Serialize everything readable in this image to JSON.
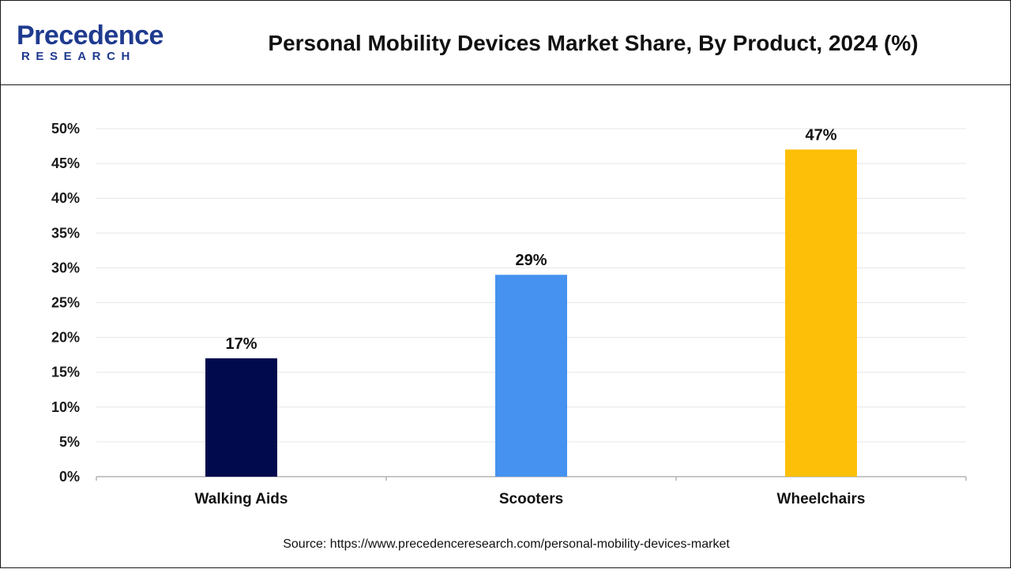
{
  "header": {
    "logo_main": "Precedence",
    "logo_sub": "RESEARCH",
    "title": "Personal Mobility Devices Market Share, By Product, 2024 (%)"
  },
  "chart_data": {
    "type": "bar",
    "title": "Personal Mobility Devices Market Share, By Product, 2024 (%)",
    "xlabel": "",
    "ylabel": "",
    "categories": [
      "Walking Aids",
      "Scooters",
      "Wheelchairs"
    ],
    "values": [
      17,
      29,
      47
    ],
    "data_labels": [
      "17%",
      "29%",
      "47%"
    ],
    "colors": [
      "#020a4e",
      "#4592f0",
      "#fdbf08"
    ],
    "ylim": [
      0,
      50
    ],
    "yticks": [
      0,
      5,
      10,
      15,
      20,
      25,
      30,
      35,
      40,
      45,
      50
    ],
    "ytick_labels": [
      "0%",
      "5%",
      "10%",
      "15%",
      "20%",
      "25%",
      "30%",
      "35%",
      "40%",
      "45%",
      "50%"
    ],
    "grid": true,
    "legend": "none"
  },
  "footer": {
    "source": "Source: https://www.precedenceresearch.com/personal-mobility-devices-market"
  }
}
